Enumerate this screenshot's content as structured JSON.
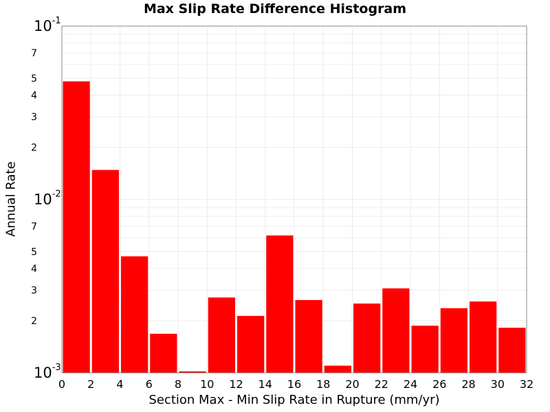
{
  "chart_data": {
    "type": "bar",
    "title": "Max Slip Rate Difference Histogram",
    "xlabel": "Section Max - Min Slip Rate in Rupture (mm/yr)",
    "ylabel": "Annual Rate",
    "y_scale": "log",
    "ylim": [
      0.001,
      0.1
    ],
    "xlim": [
      0,
      32
    ],
    "x_ticks": [
      "0",
      "2",
      "4",
      "6",
      "8",
      "10",
      "12",
      "14",
      "16",
      "18",
      "20",
      "22",
      "24",
      "26",
      "28",
      "30",
      "32"
    ],
    "y_major_ticks": [
      {
        "value": 0.001,
        "base": "10",
        "exp": "-3"
      },
      {
        "value": 0.01,
        "base": "10",
        "exp": "-2"
      },
      {
        "value": 0.1,
        "base": "10",
        "exp": "-1"
      }
    ],
    "y_minor_ticks": [
      {
        "value": 0.002,
        "label": "2"
      },
      {
        "value": 0.003,
        "label": "3"
      },
      {
        "value": 0.004,
        "label": "4"
      },
      {
        "value": 0.005,
        "label": "5"
      },
      {
        "value": 0.007,
        "label": "7"
      },
      {
        "value": 0.02,
        "label": "2"
      },
      {
        "value": 0.03,
        "label": "3"
      },
      {
        "value": 0.04,
        "label": "4"
      },
      {
        "value": 0.05,
        "label": "5"
      },
      {
        "value": 0.07,
        "label": "7"
      }
    ],
    "bin_width": 2,
    "grid": true,
    "bar_color": "#ff0000",
    "bins": [
      {
        "x_start": 0,
        "value": 0.048
      },
      {
        "x_start": 2,
        "value": 0.0148
      },
      {
        "x_start": 4,
        "value": 0.0047
      },
      {
        "x_start": 6,
        "value": 0.00168
      },
      {
        "x_start": 8,
        "value": 0.00102
      },
      {
        "x_start": 10,
        "value": 0.00272
      },
      {
        "x_start": 12,
        "value": 0.00213
      },
      {
        "x_start": 14,
        "value": 0.0062
      },
      {
        "x_start": 16,
        "value": 0.00263
      },
      {
        "x_start": 18,
        "value": 0.0011
      },
      {
        "x_start": 20,
        "value": 0.00251
      },
      {
        "x_start": 22,
        "value": 0.00307
      },
      {
        "x_start": 24,
        "value": 0.00187
      },
      {
        "x_start": 26,
        "value": 0.00236
      },
      {
        "x_start": 28,
        "value": 0.00258
      },
      {
        "x_start": 30,
        "value": 0.00182
      }
    ]
  }
}
